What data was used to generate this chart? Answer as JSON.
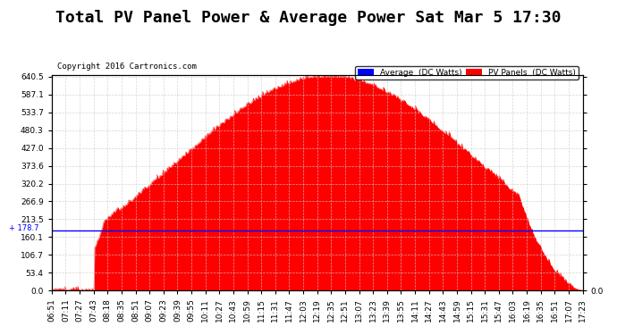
{
  "title": "Total PV Panel Power & Average Power Sat Mar 5 17:30",
  "copyright": "Copyright 2016 Cartronics.com",
  "avg_value": 178.7,
  "y_ticks": [
    0.0,
    53.4,
    106.7,
    160.1,
    213.5,
    266.9,
    320.2,
    373.6,
    427.0,
    480.3,
    533.7,
    587.1,
    640.5
  ],
  "y_max": 640.5,
  "y_min": 0.0,
  "bg_color": "#ffffff",
  "plot_bg_color": "#ffffff",
  "fill_color": "#ff0000",
  "line_color": "#ff0000",
  "avg_line_color": "#0000ff",
  "grid_color": "#cccccc",
  "title_fontsize": 13,
  "x_labels": [
    "06:51",
    "07:11",
    "07:27",
    "07:43",
    "08:18",
    "08:35",
    "08:51",
    "09:07",
    "09:23",
    "09:39",
    "09:55",
    "10:11",
    "10:27",
    "10:43",
    "10:59",
    "11:15",
    "11:31",
    "11:47",
    "12:03",
    "12:19",
    "12:35",
    "12:51",
    "13:07",
    "13:23",
    "13:39",
    "13:55",
    "14:11",
    "14:27",
    "14:43",
    "14:59",
    "15:15",
    "15:31",
    "15:47",
    "16:03",
    "16:19",
    "16:35",
    "16:51",
    "17:07",
    "17:23"
  ],
  "legend_avg_label": "Average  (DC Watts)",
  "legend_pv_label": "PV Panels  (DC Watts)"
}
